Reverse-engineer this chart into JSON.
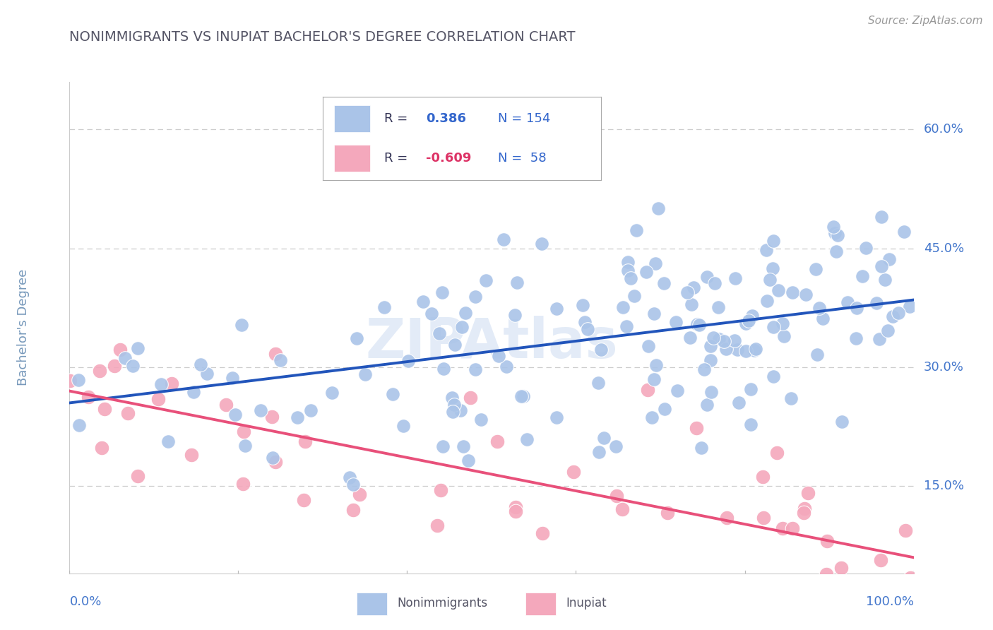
{
  "title": "NONIMMIGRANTS VS INUPIAT BACHELOR'S DEGREE CORRELATION CHART",
  "source": "Source: ZipAtlas.com",
  "ylabel": "Bachelor's Degree",
  "yticks": [
    0.15,
    0.3,
    0.45,
    0.6
  ],
  "ytick_labels": [
    "15.0%",
    "30.0%",
    "45.0%",
    "60.0%"
  ],
  "xtick_labels": [
    "0.0%",
    "100.0%"
  ],
  "xlim": [
    0.0,
    1.0
  ],
  "ylim": [
    0.04,
    0.66
  ],
  "blue_color": "#aac4e8",
  "blue_line_color": "#2255bb",
  "pink_color": "#f4a8bc",
  "pink_line_color": "#e8507a",
  "watermark": "ZIPAtlas",
  "watermark_color": "#c8d8f0",
  "background": "#ffffff",
  "grid_color": "#cccccc",
  "title_color": "#555566",
  "source_color": "#999999",
  "axis_label_color": "#4477cc",
  "ylabel_color": "#7799bb",
  "blue_line_x": [
    0.0,
    1.0
  ],
  "blue_line_y": [
    0.255,
    0.385
  ],
  "pink_line_x": [
    0.0,
    1.0
  ],
  "pink_line_y": [
    0.27,
    0.06
  ],
  "n_blue": 154,
  "n_pink": 58,
  "r_blue": "0.386",
  "r_pink": "-0.609",
  "legend_text_color": "#333355",
  "legend_value_color_blue": "#3366cc",
  "legend_value_color_pink": "#dd3366"
}
